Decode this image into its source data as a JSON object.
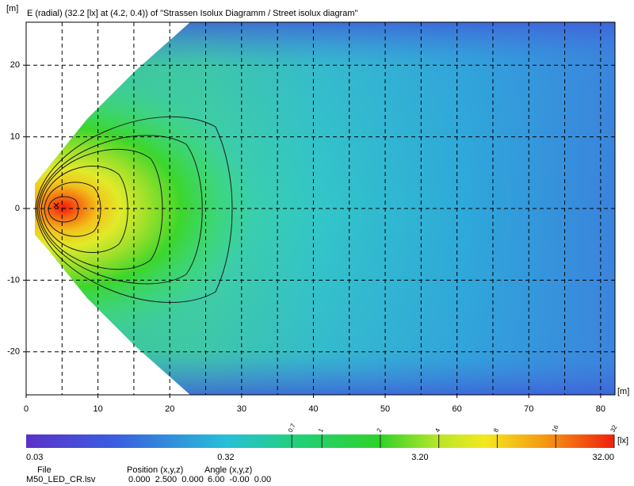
{
  "chart_data": {
    "type": "isolux",
    "title": "E (radial) (32.2 [lx] at (4.2, 0.4)) of \"Strassen Isolux Diagramm / Street isolux diagram\"",
    "y_label": "[m]",
    "x_label": "[m]",
    "xlim": [
      0,
      82
    ],
    "ylim": [
      -26,
      26
    ],
    "xticks": [
      0,
      10,
      20,
      30,
      40,
      50,
      60,
      70,
      80
    ],
    "yticks": [
      -20,
      -10,
      0,
      10,
      20
    ],
    "xgrid": [
      5,
      10,
      15,
      20,
      25,
      30,
      35,
      40,
      45,
      50,
      55,
      60,
      65,
      70,
      75,
      80
    ],
    "ygrid": [
      -20,
      -10,
      0,
      10,
      20
    ],
    "grid": true,
    "colorbar": {
      "unit": "[lx]",
      "log": true,
      "lim": [
        0.03,
        32
      ],
      "ticks": [
        0.03,
        0.32,
        {
          "value": 3.2,
          "label": "3.20"
        },
        {
          "value": 32,
          "label": "32.00"
        }
      ],
      "contours": [
        0.7,
        1,
        2,
        4,
        8,
        16,
        32
      ]
    },
    "footer": {
      "file_label": "File",
      "file": "M50_LED_CR.lsv",
      "position_label": "Position (x,y,z)",
      "position": "0.000  2.500  0.000",
      "angle_label": "Angle (x,y,z)",
      "angle": "6.00  -0.00  0.00"
    }
  }
}
